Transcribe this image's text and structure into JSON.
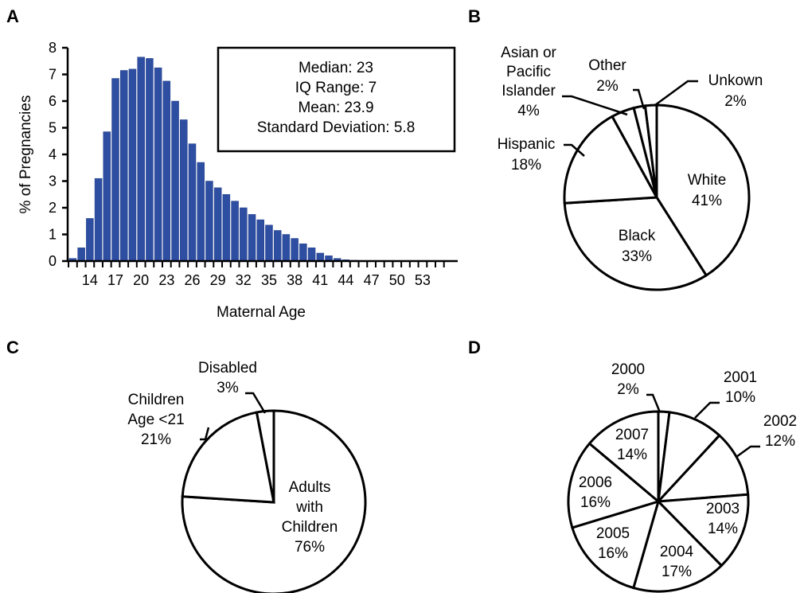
{
  "panels": {
    "a": {
      "letter": "A"
    },
    "b": {
      "letter": "B"
    },
    "c": {
      "letter": "C"
    },
    "d": {
      "letter": "D"
    }
  },
  "stats": {
    "lines": [
      "Median: 23",
      "IQ Range: 7",
      "Mean: 23.9",
      "Standard Deviation: 5.8"
    ]
  },
  "chart_data": [
    {
      "id": "A",
      "type": "bar",
      "xlabel": "Maternal Age",
      "ylabel": "% of Pregnancies",
      "ylim": [
        0,
        8
      ],
      "yticks": [
        0,
        1,
        2,
        3,
        4,
        5,
        6,
        7,
        8
      ],
      "xtick_labels": [
        "14",
        "17",
        "20",
        "23",
        "26",
        "29",
        "32",
        "35",
        "38",
        "41",
        "44",
        "47",
        "50",
        "53"
      ],
      "categories": [
        12,
        13,
        14,
        15,
        16,
        17,
        18,
        19,
        20,
        21,
        22,
        23,
        24,
        25,
        26,
        27,
        28,
        29,
        30,
        31,
        32,
        33,
        34,
        35,
        36,
        37,
        38,
        39,
        40,
        41,
        42,
        43,
        44,
        45,
        46,
        47,
        48,
        49,
        50,
        51,
        52,
        53,
        54,
        55
      ],
      "values": [
        0.1,
        0.5,
        1.6,
        3.1,
        4.85,
        6.85,
        7.15,
        7.2,
        7.65,
        7.6,
        7.25,
        6.75,
        6.0,
        5.3,
        4.4,
        3.7,
        3.0,
        2.75,
        2.5,
        2.25,
        2.0,
        1.75,
        1.55,
        1.35,
        1.15,
        1.0,
        0.85,
        0.65,
        0.5,
        0.3,
        0.2,
        0.1,
        0.05,
        0.03,
        0.02,
        0.01,
        0.01,
        0.01,
        0.0,
        0.0,
        0.0,
        0.0,
        0.0,
        0.0
      ]
    },
    {
      "id": "B",
      "type": "pie",
      "slices": [
        {
          "label": "White",
          "pct": "41%",
          "value": 41
        },
        {
          "label": "Black",
          "pct": "33%",
          "value": 33
        },
        {
          "label": "Hispanic",
          "pct": "18%",
          "value": 18
        },
        {
          "label": "Asian or Pacific Islander",
          "pct": "4%",
          "value": 4
        },
        {
          "label": "Other",
          "pct": "2%",
          "value": 2
        },
        {
          "label": "Unkown",
          "pct": "2%",
          "value": 2
        }
      ]
    },
    {
      "id": "C",
      "type": "pie",
      "slices": [
        {
          "label": "Adults with Children",
          "pct": "76%",
          "value": 76
        },
        {
          "label": "Children Age <21",
          "pct": "21%",
          "value": 21
        },
        {
          "label": "Disabled",
          "pct": "3%",
          "value": 3
        }
      ]
    },
    {
      "id": "D",
      "type": "pie",
      "slices": [
        {
          "label": "2000",
          "pct": "2%",
          "value": 2
        },
        {
          "label": "2001",
          "pct": "10%",
          "value": 10
        },
        {
          "label": "2002",
          "pct": "12%",
          "value": 12
        },
        {
          "label": "2003",
          "pct": "14%",
          "value": 14
        },
        {
          "label": "2004",
          "pct": "17%",
          "value": 17
        },
        {
          "label": "2005",
          "pct": "16%",
          "value": 16
        },
        {
          "label": "2006",
          "pct": "16%",
          "value": 16
        },
        {
          "label": "2007",
          "pct": "14%",
          "value": 14
        }
      ]
    }
  ],
  "pie_text": {
    "b": {
      "white": "White",
      "white_pct": "41%",
      "black": "Black",
      "black_pct": "33%",
      "hispanic": "Hispanic",
      "hispanic_pct": "18%",
      "asian_1": "Asian or",
      "asian_2": "Pacific",
      "asian_3": "Islander",
      "asian_pct": "4%",
      "other": "Other",
      "other_pct": "2%",
      "unknown": "Unkown",
      "unknown_pct": "2%"
    },
    "c": {
      "adults_1": "Adults",
      "adults_2": "with",
      "adults_3": "Children",
      "adults_pct": "76%",
      "children_1": "Children",
      "children_2": "Age <21",
      "children_pct": "21%",
      "disabled": "Disabled",
      "disabled_pct": "3%"
    },
    "d": {
      "y2000": "2000",
      "y2000_pct": "2%",
      "y2001": "2001",
      "y2001_pct": "10%",
      "y2002": "2002",
      "y2002_pct": "12%",
      "y2003": "2003",
      "y2003_pct": "14%",
      "y2004": "2004",
      "y2004_pct": "17%",
      "y2005": "2005",
      "y2005_pct": "16%",
      "y2006": "2006",
      "y2006_pct": "16%",
      "y2007": "2007",
      "y2007_pct": "14%"
    }
  }
}
